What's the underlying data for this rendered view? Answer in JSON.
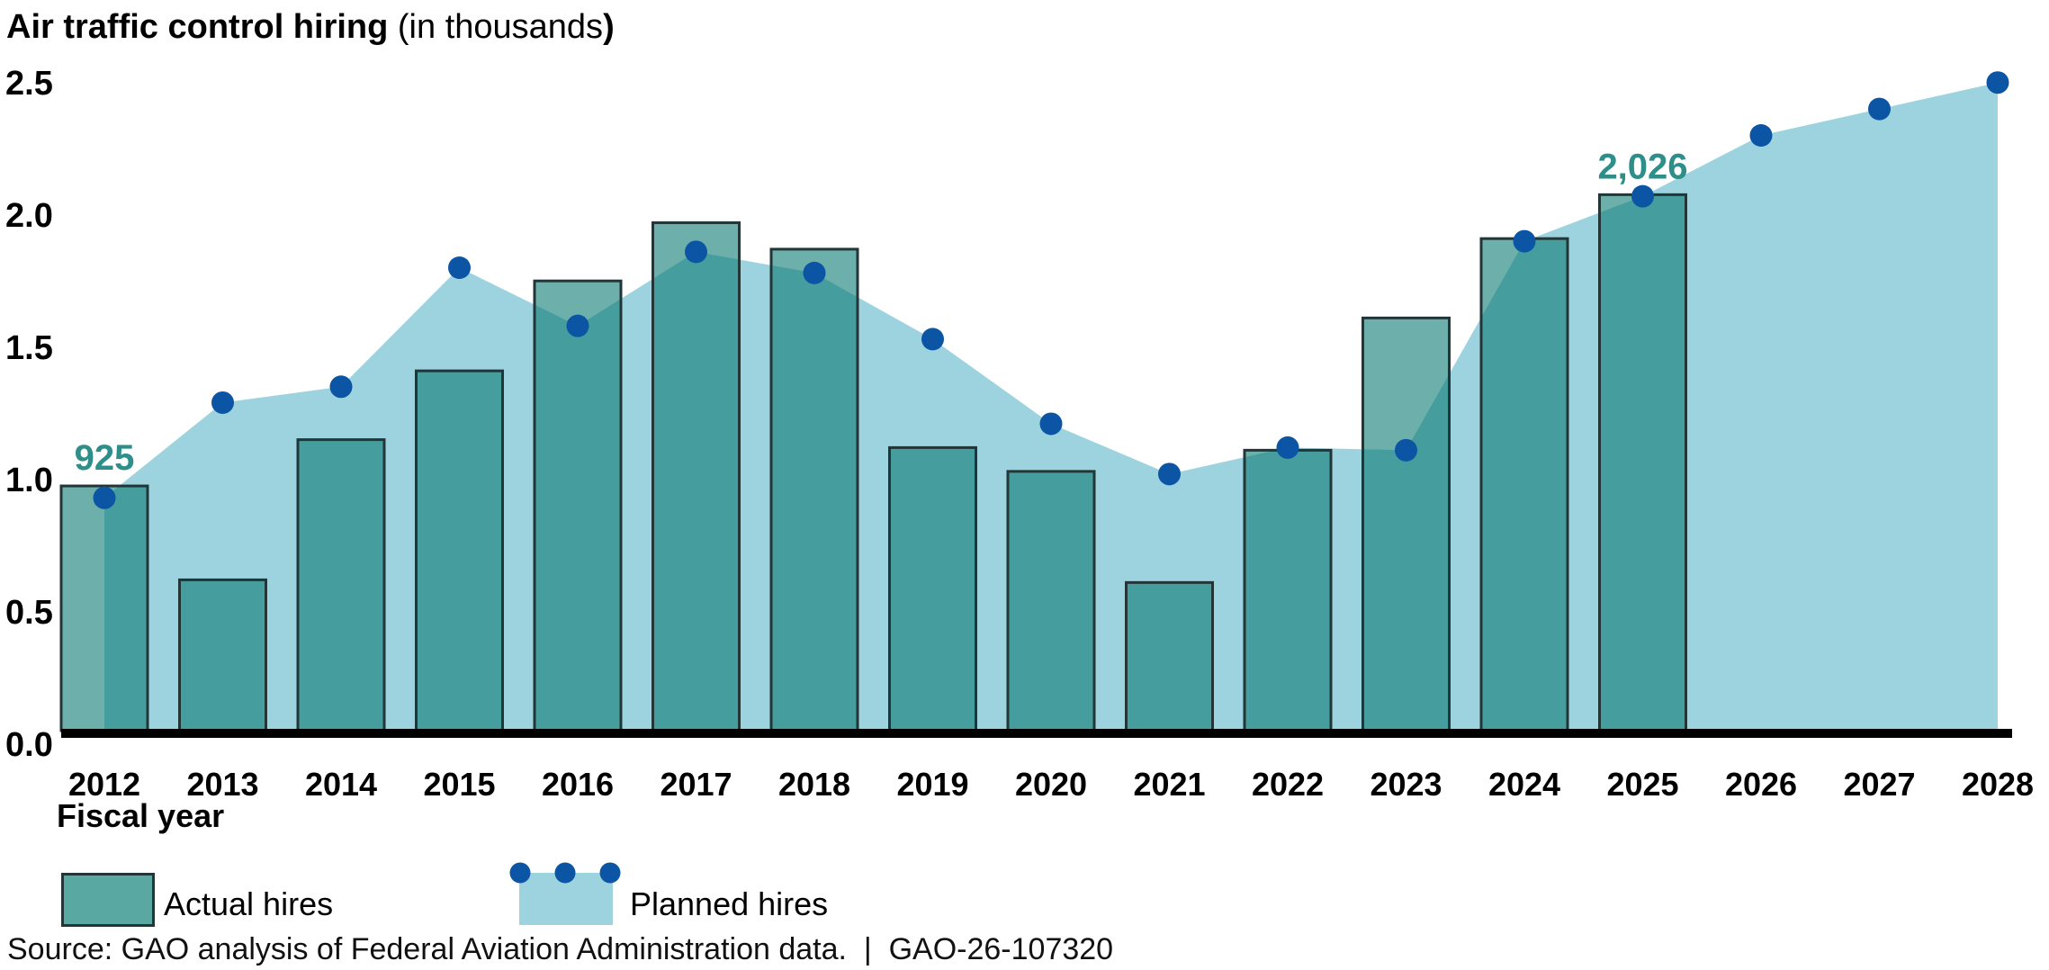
{
  "title": {
    "main_bold": "Air traffic control hiring ",
    "unit_regular": "(in thousands",
    "close_bold": ")"
  },
  "x_axis_label": "Fiscal year",
  "legend": {
    "actual_label": "Actual hires",
    "planned_label": "Planned hires"
  },
  "source_line": "Source: GAO analysis of Federal Aviation Administration data.  |  GAO-26-107320",
  "chart_data": {
    "type": "combo: bar (actual) + area with point markers (planned)",
    "title": "Air traffic control hiring (in thousands)",
    "xlabel": "Fiscal year",
    "ylabel": "",
    "categories": [
      "2012",
      "2013",
      "2014",
      "2015",
      "2016",
      "2017",
      "2018",
      "2019",
      "2020",
      "2021",
      "2022",
      "2023",
      "2024",
      "2025",
      "2026",
      "2027",
      "2028"
    ],
    "series": [
      {
        "name": "Actual hires",
        "type": "bar",
        "values": [
          0.925,
          0.57,
          1.1,
          1.36,
          1.7,
          1.92,
          1.82,
          1.07,
          0.98,
          0.56,
          1.06,
          1.56,
          1.86,
          2.026,
          null,
          null,
          null
        ]
      },
      {
        "name": "Planned hires",
        "type": "area",
        "values": [
          0.88,
          1.24,
          1.3,
          1.75,
          1.53,
          1.81,
          1.73,
          1.48,
          1.16,
          0.97,
          1.07,
          1.06,
          1.85,
          2.02,
          2.25,
          2.35,
          2.45
        ]
      }
    ],
    "callouts": [
      {
        "category": "2012",
        "text": "925"
      },
      {
        "category": "2025",
        "text": "2,026"
      }
    ],
    "ylim": [
      0,
      2.5
    ],
    "yticks": [
      {
        "v": 0.0,
        "label": "0.0"
      },
      {
        "v": 0.5,
        "label": "0.5"
      },
      {
        "v": 1.0,
        "label": "1.0"
      },
      {
        "v": 1.5,
        "label": "1.5"
      },
      {
        "v": 2.0,
        "label": "2.0"
      },
      {
        "v": 2.5,
        "label": "2.5"
      }
    ],
    "grid": false,
    "legend_position": "bottom-left",
    "colors": {
      "actual_fill": "rgba(12,122,115,0.60)",
      "actual_fill_legend": "#5aa8a2",
      "actual_border": "#223638",
      "planned_fill": "#9dd3df",
      "dot": "#0c55a4",
      "callout": "#2e8e89",
      "baseline": "#000000"
    }
  }
}
